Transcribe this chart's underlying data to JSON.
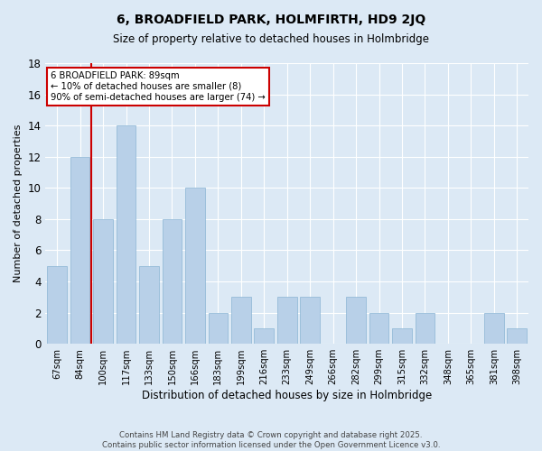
{
  "title": "6, BROADFIELD PARK, HOLMFIRTH, HD9 2JQ",
  "subtitle": "Size of property relative to detached houses in Holmbridge",
  "xlabel": "Distribution of detached houses by size in Holmbridge",
  "ylabel": "Number of detached properties",
  "categories": [
    "67sqm",
    "84sqm",
    "100sqm",
    "117sqm",
    "133sqm",
    "150sqm",
    "166sqm",
    "183sqm",
    "199sqm",
    "216sqm",
    "233sqm",
    "249sqm",
    "266sqm",
    "282sqm",
    "299sqm",
    "315sqm",
    "332sqm",
    "348sqm",
    "365sqm",
    "381sqm",
    "398sqm"
  ],
  "values": [
    5,
    12,
    8,
    14,
    5,
    8,
    10,
    2,
    3,
    1,
    3,
    3,
    0,
    3,
    2,
    1,
    2,
    0,
    0,
    2,
    1
  ],
  "bar_color": "#b8d0e8",
  "bar_edge_color": "#8ab4d4",
  "vline_color": "#cc0000",
  "annotation_text": "6 BROADFIELD PARK: 89sqm\n← 10% of detached houses are smaller (8)\n90% of semi-detached houses are larger (74) →",
  "annotation_box_color": "#ffffff",
  "annotation_box_edge_color": "#cc0000",
  "bg_color": "#dce9f5",
  "plot_bg_color": "#dce9f5",
  "footer": "Contains HM Land Registry data © Crown copyright and database right 2025.\nContains public sector information licensed under the Open Government Licence v3.0.",
  "ylim": [
    0,
    18
  ],
  "yticks": [
    0,
    2,
    4,
    6,
    8,
    10,
    12,
    14,
    16,
    18
  ]
}
